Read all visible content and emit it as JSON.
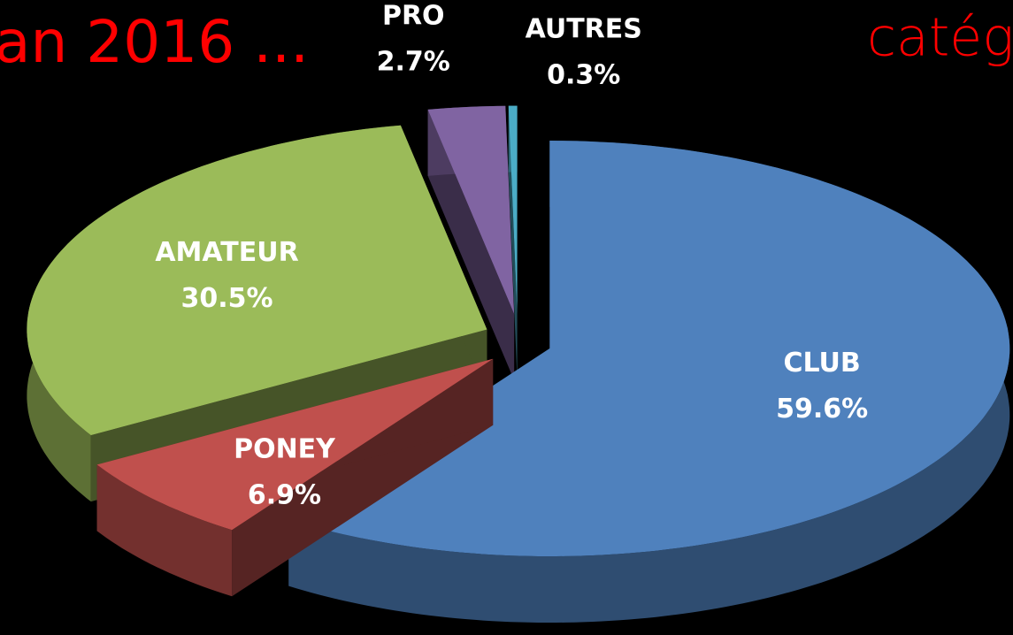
{
  "chart_data": {
    "type": "pie3d",
    "annotations": [
      "an 2016 ...",
      "catég"
    ],
    "categories": [
      "CLUB",
      "PONEY",
      "AMATEUR",
      "PRO",
      "AUTRES"
    ],
    "values": [
      59.6,
      6.9,
      30.5,
      2.7,
      0.3
    ],
    "value_labels": [
      "59.6%",
      "6.9%",
      "30.5%",
      "2.7%",
      "0.3%"
    ],
    "colors": [
      "#4f81bd",
      "#c0504d",
      "#9bbb59",
      "#8064a2",
      "#4bacc6"
    ]
  }
}
